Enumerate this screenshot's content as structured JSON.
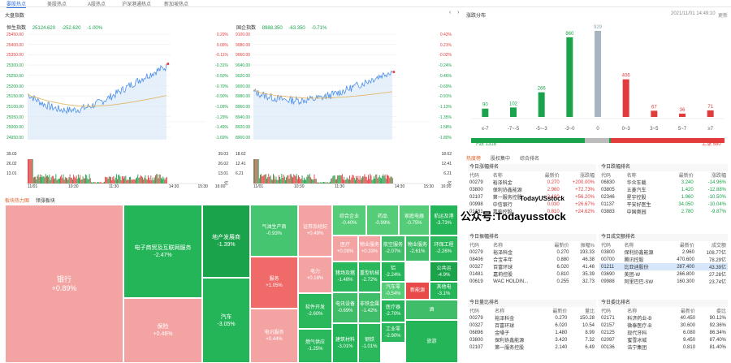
{
  "top_tabs": [
    "要股热点",
    "美股热点",
    "A股热点",
    "沪深港通热点",
    "新加坡热点"
  ],
  "left_panel": {
    "title": "大盘指数"
  },
  "hsi": {
    "name": "恒生指数",
    "value": "25124.620",
    "change": "-252.620",
    "pct": "-1.00%",
    "y_left": [
      "25450.00",
      "25400.00",
      "25350.00",
      "25300.00",
      "25250.00",
      "25200.00",
      "25150.00",
      "25100.00",
      "25050.00",
      "25000.00",
      "24950.00"
    ],
    "y_right": [
      "0.29%",
      "0.09%",
      "-0.11%",
      "-0.31%",
      "-0.50%",
      "-0.70%",
      "-0.90%",
      "-1.09%",
      "-1.29%",
      "-1.49%",
      "-1.69%"
    ],
    "vol_left": [
      "39.03",
      "26.02",
      "13.01"
    ],
    "vol_right": [
      "39.03",
      "26.02",
      "13.01",
      "亿"
    ],
    "x": [
      "11/01",
      "10:30",
      "11:30",
      "14:30",
      "15:30",
      "16:00"
    ]
  },
  "hscei": {
    "name": "国企指数",
    "value": "8988.350",
    "change": "-63.350",
    "pct": "-0.71%",
    "y_left": [
      "9100.00",
      "9080.00",
      "9060.00",
      "9040.00",
      "9020.00",
      "9000.00",
      "8980.00",
      "8960.00",
      "8940.00",
      "8920.00",
      "8900.00"
    ],
    "y_right": [
      "0.43%",
      "0.21%",
      "-0.02%",
      "-0.24%",
      "-0.46%",
      "-0.69%",
      "-0.91%",
      "-1.13%",
      "-1.35%",
      "-1.58%",
      "-1.80%"
    ],
    "vol_left": [
      "18.62",
      "12.41",
      "6.21"
    ],
    "vol_right": [
      "18.62",
      "12.41",
      "6.21",
      "亿"
    ],
    "x": [
      "11/01",
      "10:30",
      "11:30",
      "14:30",
      "15:30",
      "16:00"
    ]
  },
  "sector_tabs": [
    "板块热力图",
    "领涨板块"
  ],
  "treemap": [
    {
      "name": "银行",
      "value": "+0.89%"
    },
    {
      "name": "电子商贸及互联网服务",
      "value": "-2.47%"
    },
    {
      "name": "保险",
      "value": "+0.46%"
    },
    {
      "name": "地产发展商",
      "value": "-1.39%"
    },
    {
      "name": "汽车",
      "value": "-3.05%"
    },
    {
      "name": "气油生产商",
      "value": "-0.93%"
    },
    {
      "name": "服务",
      "value": "+1.05%"
    },
    {
      "name": "电讯服务",
      "value": "+0.44%"
    },
    {
      "name": "证券及经纪",
      "value": "+0.49%"
    },
    {
      "name": "电力",
      "value": "+0.18%"
    },
    {
      "name": "软件开发",
      "value": "-2.60%"
    },
    {
      "name": "燃气供应",
      "value": "-1.25%"
    },
    {
      "name": "综合企业",
      "value": "-0.40%"
    },
    {
      "name": "医疗",
      "value": "+0.08%"
    },
    {
      "name": "猪场及猪",
      "value": "-1.48%"
    },
    {
      "name": "电讯设备",
      "value": "-0.69%"
    },
    {
      "name": "建筑材料",
      "value": "-3.01%"
    },
    {
      "name": "药品",
      "value": "-0.99%"
    },
    {
      "name": "家庭电器",
      "value": "-0.75%"
    },
    {
      "name": "航运及港",
      "value": "-3.73%"
    },
    {
      "name": "物业服务",
      "value": "+0.33%"
    },
    {
      "name": "航空服务",
      "value": "-2.07%"
    },
    {
      "name": "物业服务",
      "value": "-2.61%"
    },
    {
      "name": "环保工程",
      "value": "-2.26%"
    },
    {
      "name": "重型机械",
      "value": "-2.72%"
    },
    {
      "name": "铝",
      "value": "-2.24%"
    },
    {
      "name": "公共运",
      "value": "-4.9%"
    },
    {
      "name": "汽车零",
      "value": "-0.54%"
    },
    {
      "name": "新能源",
      "value": ""
    },
    {
      "name": "其他电",
      "value": "-3.1%"
    },
    {
      "name": "非铁金属",
      "value": "-1.42%"
    },
    {
      "name": "医疗器",
      "value": "-2.70%"
    },
    {
      "name": "工业零",
      "value": "-2.90%"
    },
    {
      "name": "钢铁",
      "value": "-1.01%"
    },
    {
      "name": "酒",
      "value": ""
    },
    {
      "name": "旅游",
      "value": ""
    }
  ],
  "dist": {
    "title": "涨跌分布",
    "time": "2021/11/01 14:49:10",
    "more": "更新",
    "bars": [
      {
        "cat": "≤-7",
        "value": 90,
        "color": "#1aa34a"
      },
      {
        "cat": "-7~-5",
        "value": 102,
        "color": "#1aa34a"
      },
      {
        "cat": "-5~-3",
        "value": 266,
        "color": "#1aa34a"
      },
      {
        "cat": "-3~0",
        "value": 860,
        "color": "#1aa34a"
      },
      {
        "cat": "0",
        "value": 929,
        "color": "#a9b4c2"
      },
      {
        "cat": "0~3",
        "value": 406,
        "color": "#e23b3b"
      },
      {
        "cat": "3~5",
        "value": 67,
        "color": "#e23b3b"
      },
      {
        "cat": "5~7",
        "value": 36,
        "color": "#e23b3b"
      },
      {
        "cat": "≥7",
        "value": 71,
        "color": "#e23b3b"
      }
    ],
    "down_label": "下跌 1318",
    "up_label": "上涨 580"
  },
  "hot_tabs": [
    "热度榜",
    "股权集中",
    "综合排名"
  ],
  "watermark": {
    "line1": "公众号:Todayusstock",
    "line2": "TodayUSstock"
  },
  "tables": {
    "gainers": {
      "title": "今日涨幅排名",
      "headers": [
        "代码",
        "名称",
        "最新价",
        "涨跌幅"
      ],
      "rows": [
        [
          "00279",
          "裕泽科金",
          "0.270",
          "+200.00%"
        ],
        [
          "03800",
          "保利协鑫能源",
          "2.960",
          "+72.73%"
        ],
        [
          "02107",
          "第一服务控股",
          "2.160",
          "+56.20%"
        ],
        [
          "00998",
          "中信银行",
          "0.030",
          "+26.67%"
        ],
        [
          "01481",
          "嘉莉控股",
          "0.810",
          "+24.62%"
        ]
      ]
    },
    "losers": {
      "title": "今日跌幅排名",
      "headers": [
        "代码",
        "名称",
        "最新价",
        "涨跌幅"
      ],
      "rows": [
        [
          "06830",
          "华众车载",
          "3.240",
          "-14.96%"
        ],
        [
          "03805",
          "五菱汽车",
          "1.420",
          "-12.88%"
        ],
        [
          "02346",
          "星宇控股",
          "1.960",
          "-10.50%"
        ],
        [
          "01137",
          "平安好医生",
          "34.050",
          "-10.04%"
        ],
        [
          "03883",
          "中国奥园",
          "2.780",
          "-9.87%"
        ]
      ]
    },
    "amplitude": {
      "title": "今日振幅排名",
      "headers": [
        "代码",
        "名称",
        "最新价",
        "振幅%"
      ],
      "rows": [
        [
          "00279",
          "裕泽科金",
          "0.270",
          "193.33"
        ],
        [
          "08406",
          "合宝丰年",
          "0.880",
          "46.38"
        ],
        [
          "00327",
          "百富环球",
          "6.020",
          "41.48"
        ],
        [
          "01481",
          "嘉莉控股",
          "0.810",
          "35.39"
        ],
        [
          "00619",
          "WAC HOLDIN...",
          "0.255",
          "32.73"
        ]
      ]
    },
    "turnover": {
      "title": "今日成交额排名",
      "headers": [
        "代码",
        "名称",
        "最新价",
        "成交额"
      ],
      "rows": [
        [
          "03800",
          "保利协鑫能源",
          "2.960",
          "108.77亿"
        ],
        [
          "00700",
          "腾讯控股",
          "470.600",
          "78.29亿"
        ],
        [
          "01211",
          "比亚迪股份",
          "287.400",
          "43.39亿"
        ],
        [
          "03690",
          "美团-W",
          "266.800",
          "27.28亿"
        ],
        [
          "09988",
          "阿里巴巴-SW",
          "160.300",
          "23.74亿"
        ]
      ]
    },
    "volratio": {
      "title": "今日量比排名",
      "headers": [
        "代码",
        "名称",
        "最新价",
        "量比"
      ],
      "rows": [
        [
          "00279",
          "裕泽科金",
          "0.270",
          "150.28"
        ],
        [
          "00327",
          "百富环球",
          "6.020",
          "10.54"
        ],
        [
          "06896",
          "金嗓子",
          "1.480",
          "8.99"
        ],
        [
          "03800",
          "保利协鑫能源",
          "3.420",
          "7.32"
        ],
        [
          "02107",
          "第一服务控股",
          "2.140",
          "6.49"
        ]
      ]
    },
    "ratio": {
      "title": "今日委比排名",
      "headers": [
        "代码",
        "名称",
        "最新价",
        "委比"
      ],
      "rows": [
        [
          "02171",
          "科济药业-B",
          "40.450",
          "90.12%"
        ],
        [
          "02157",
          "微泰医疗-B",
          "30.600",
          "92.36%"
        ],
        [
          "02125",
          "现代牙科",
          "6.080",
          "86.34%"
        ],
        [
          "02097",
          "蜜雪冰城",
          "9.450",
          "87.40%"
        ],
        [
          "00136",
          "浩宁集团",
          "0.810",
          "81.40%"
        ]
      ]
    }
  }
}
